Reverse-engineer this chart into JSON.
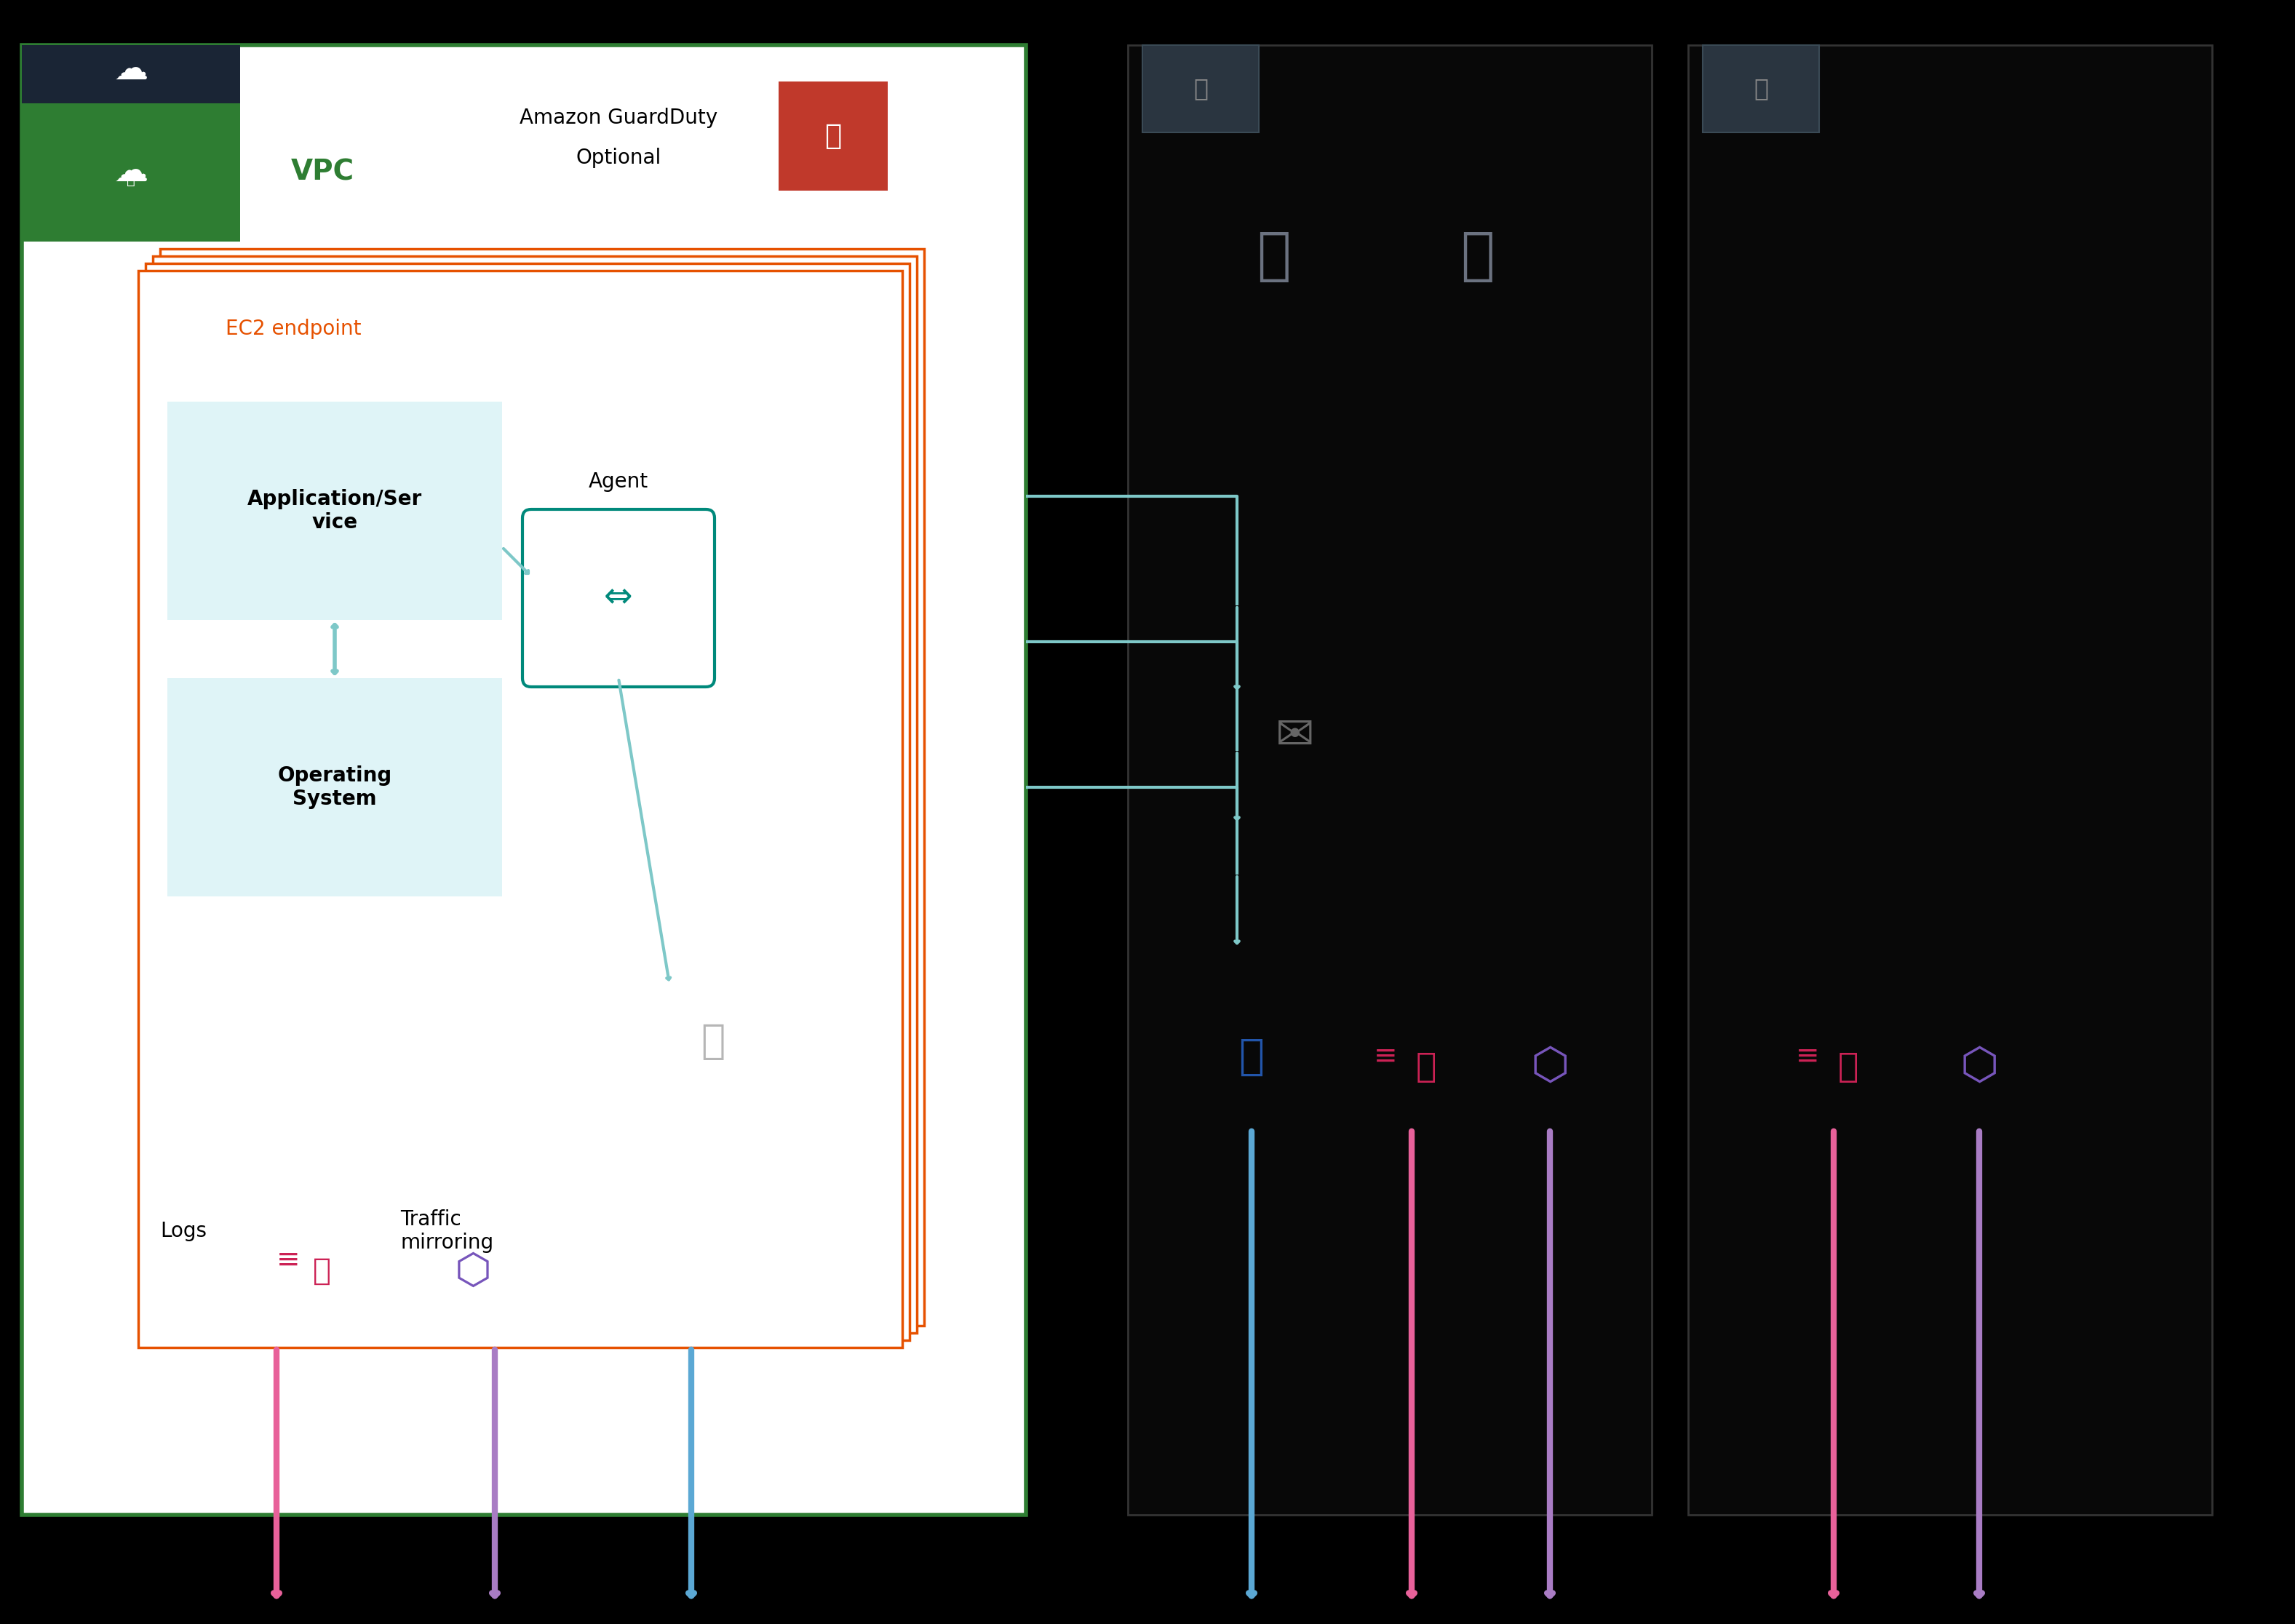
{
  "bg_color": "#000000",
  "white_bg": "#ffffff",
  "vpc_green": "#2e7d32",
  "orange": "#e65100",
  "light_blue_box": "#dff4f7",
  "teal": "#00897b",
  "light_blue_arrow": "#7ec8c8",
  "pink_arrow": "#e8619a",
  "purple_arrow": "#a97cc4",
  "blue_arrow": "#5ba8d4",
  "dark_gray": "#6b7280",
  "red_guardduty": "#c0392b",
  "vpc_text": "VPC",
  "ec2_text": "EC2 endpoint",
  "guardduty_text": "Amazon GuardDuty\nOptional",
  "app_text": "Application/Ser\nvice",
  "os_text": "Operating\nSystem",
  "agent_text": "Agent",
  "logs_text": "Logs",
  "traffic_text": "Traffic\nmirroring"
}
